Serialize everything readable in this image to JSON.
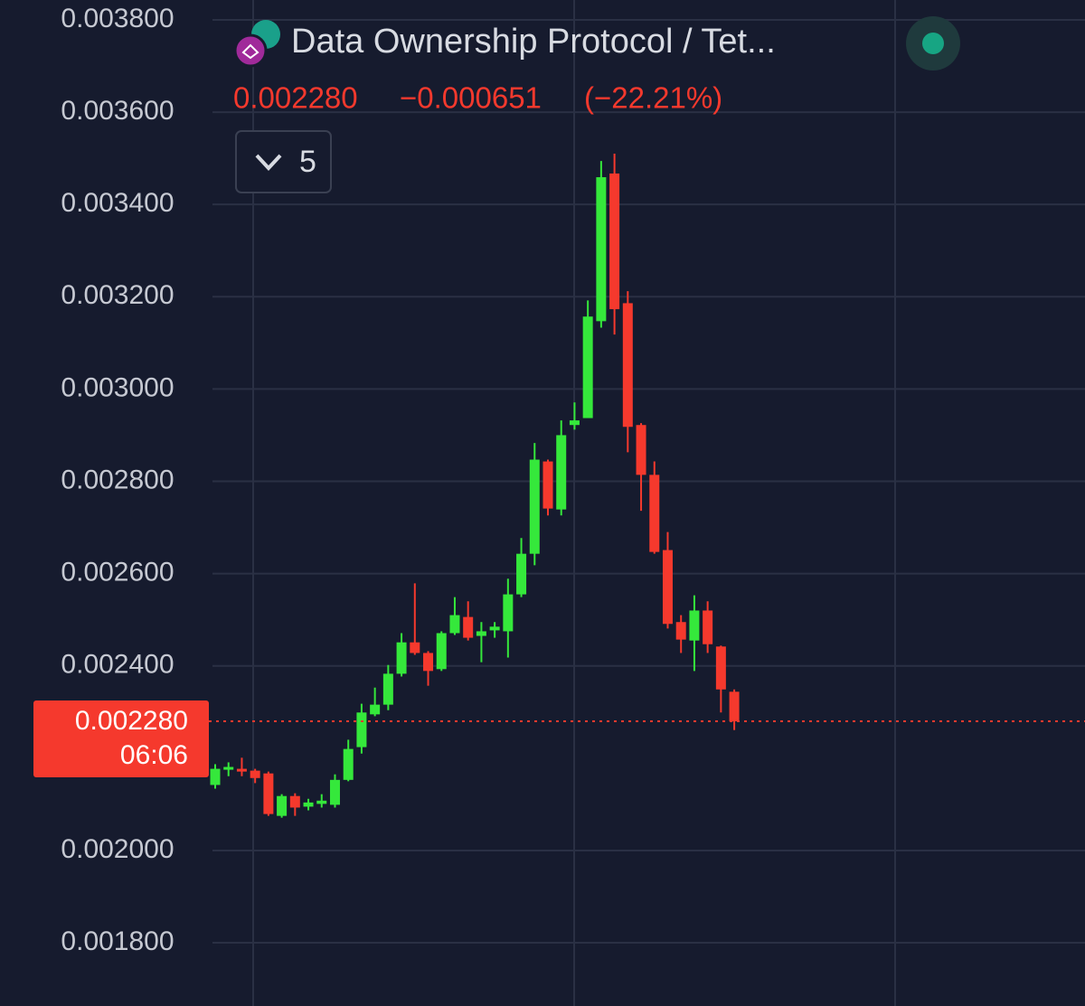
{
  "header": {
    "title": "Data Ownership Protocol / Tet...",
    "price": "0.002280",
    "change": "−0.000651",
    "change_percent": "(−22.21%)",
    "interval": "5"
  },
  "chart_data": {
    "type": "candlestick",
    "ylim": [
      0.001663,
      0.003843
    ],
    "yticks": [
      {
        "value": 0.0038,
        "label": "0.003800"
      },
      {
        "value": 0.0036,
        "label": "0.003600"
      },
      {
        "value": 0.0034,
        "label": "0.003400"
      },
      {
        "value": 0.0032,
        "label": "0.003200"
      },
      {
        "value": 0.003,
        "label": "0.003000"
      },
      {
        "value": 0.0028,
        "label": "0.002800"
      },
      {
        "value": 0.0026,
        "label": "0.002600"
      },
      {
        "value": 0.0024,
        "label": "0.002400"
      },
      {
        "value": 0.002,
        "label": "0.002000"
      },
      {
        "value": 0.0018,
        "label": "0.001800"
      }
    ],
    "grid": true,
    "up_color": "#35e83b",
    "down_color": "#f5392d",
    "open": [
      0.002142,
      0.002175,
      0.002177,
      0.002173,
      0.002167,
      0.002075,
      0.002118,
      0.002095,
      0.002101,
      0.002099,
      0.002153,
      0.002224,
      0.002295,
      0.002316,
      0.002383,
      0.002451,
      0.002428,
      0.002393,
      0.002471,
      0.002506,
      0.002465,
      0.002477,
      0.002475,
      0.002555,
      0.002643,
      0.002843,
      0.002739,
      0.002922,
      0.002937,
      0.003147,
      0.003467,
      0.003186,
      0.002922,
      0.002814,
      0.002651,
      0.002495,
      0.002455,
      0.00252,
      0.002442,
      0.002344
    ],
    "high": [
      0.002187,
      0.002191,
      0.002201,
      0.002177,
      0.002171,
      0.002122,
      0.002124,
      0.002112,
      0.002122,
      0.002165,
      0.00224,
      0.002318,
      0.002353,
      0.002402,
      0.002471,
      0.002579,
      0.002432,
      0.002475,
      0.002549,
      0.00254,
      0.002495,
      0.002495,
      0.002589,
      0.002677,
      0.002883,
      0.002847,
      0.002932,
      0.002971,
      0.003192,
      0.003494,
      0.00351,
      0.003212,
      0.002926,
      0.002843,
      0.00269,
      0.00251,
      0.002553,
      0.00254,
      0.002444,
      0.002349
    ],
    "low": [
      0.002134,
      0.002161,
      0.002161,
      0.002146,
      0.002075,
      0.002071,
      0.002075,
      0.002087,
      0.002093,
      0.002093,
      0.00215,
      0.00221,
      0.002291,
      0.002304,
      0.002377,
      0.002424,
      0.002357,
      0.002389,
      0.002467,
      0.002455,
      0.002408,
      0.002461,
      0.002418,
      0.002549,
      0.002618,
      0.002726,
      0.002726,
      0.002912,
      0.002937,
      0.003133,
      0.003118,
      0.002863,
      0.002736,
      0.002643,
      0.002481,
      0.002428,
      0.002389,
      0.002428,
      0.002299,
      0.002261
    ],
    "close": [
      0.002177,
      0.002181,
      0.002171,
      0.002157,
      0.002079,
      0.002118,
      0.002093,
      0.002104,
      0.002108,
      0.002153,
      0.00222,
      0.002299,
      0.002316,
      0.002383,
      0.002451,
      0.002428,
      0.002389,
      0.002471,
      0.00251,
      0.002461,
      0.002475,
      0.002485,
      0.002555,
      0.002643,
      0.002847,
      0.002741,
      0.0029,
      0.002932,
      0.003157,
      0.003459,
      0.003173,
      0.002918,
      0.002814,
      0.002647,
      0.002491,
      0.002457,
      0.00252,
      0.002447,
      0.002349,
      0.00228
    ],
    "last_price": {
      "value": 0.00228,
      "label": "0.002280"
    },
    "countdown": "06:06"
  }
}
